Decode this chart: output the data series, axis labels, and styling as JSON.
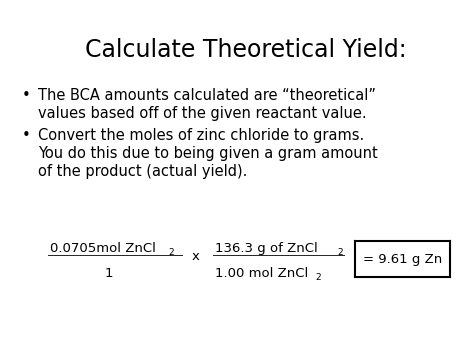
{
  "title": "Calculate Theoretical Yield:",
  "background_color": "#ffffff",
  "text_color": "#000000",
  "bullet1_line1": "The BCA amounts calculated are “theoretical”",
  "bullet1_line2": "values based off of the given reactant value.",
  "bullet2_line1": "Convert the moles of zinc chloride to grams.",
  "bullet2_line2": "You do this due to being given a gram amount",
  "bullet2_line3": "of the product (actual yield).",
  "title_fontsize": 17,
  "body_fontsize": 10.5,
  "formula_fontsize": 9.5,
  "sub_fontsize": 6.5,
  "fig_width": 4.74,
  "fig_height": 3.55,
  "fig_dpi": 100
}
